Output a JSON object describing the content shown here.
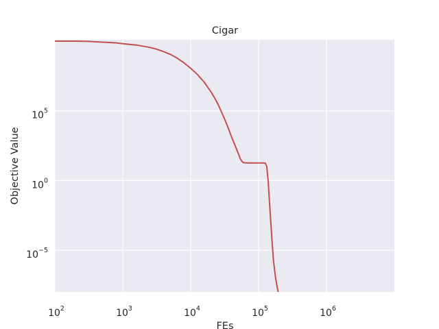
{
  "chart_data": {
    "type": "line",
    "title": "Cigar",
    "xlabel": "FEs",
    "ylabel": "Objective Value",
    "xscale": "log",
    "yscale": "log",
    "xlim_exp": [
      2,
      7
    ],
    "ylim_exp": [
      -8,
      10.1
    ],
    "grid": true,
    "background": "#eaeaf2",
    "line_color": "#c44e52",
    "x_ticks": [
      {
        "base": "10",
        "exp": "2"
      },
      {
        "base": "10",
        "exp": "3"
      },
      {
        "base": "10",
        "exp": "4"
      },
      {
        "base": "10",
        "exp": "5"
      },
      {
        "base": "10",
        "exp": "6"
      }
    ],
    "y_ticks": [
      {
        "base": "10",
        "exp": "5",
        "value_exp": 5
      },
      {
        "base": "10",
        "exp": "0",
        "value_exp": 0
      },
      {
        "base": "10",
        "exp": "−5",
        "value_exp": -5
      }
    ],
    "series": [
      {
        "x_log10": [
          2.0,
          2.3,
          2.5,
          2.7,
          2.9,
          3.0,
          3.2,
          3.4,
          3.5,
          3.6,
          3.7,
          3.8,
          3.9,
          4.0,
          4.1,
          4.2,
          4.3,
          4.35,
          4.4,
          4.45,
          4.5,
          4.55,
          4.6,
          4.65,
          4.7,
          4.73,
          4.76,
          4.78,
          4.8,
          4.85,
          4.9,
          4.95,
          5.0,
          5.05,
          5.08,
          5.1,
          5.12,
          5.14,
          5.16,
          5.18,
          5.2,
          5.22,
          5.25,
          5.28,
          5.29
        ],
        "y_log10": [
          10.0,
          10.0,
          9.98,
          9.93,
          9.88,
          9.82,
          9.72,
          9.55,
          9.42,
          9.25,
          9.05,
          8.78,
          8.45,
          8.05,
          7.6,
          7.05,
          6.35,
          5.95,
          5.5,
          4.95,
          4.4,
          3.8,
          3.15,
          2.55,
          1.95,
          1.55,
          1.35,
          1.28,
          1.27,
          1.26,
          1.26,
          1.26,
          1.26,
          1.26,
          1.26,
          1.24,
          1.0,
          0.0,
          -1.5,
          -3.0,
          -4.5,
          -5.8,
          -7.0,
          -7.8,
          -8.1
        ]
      }
    ]
  }
}
